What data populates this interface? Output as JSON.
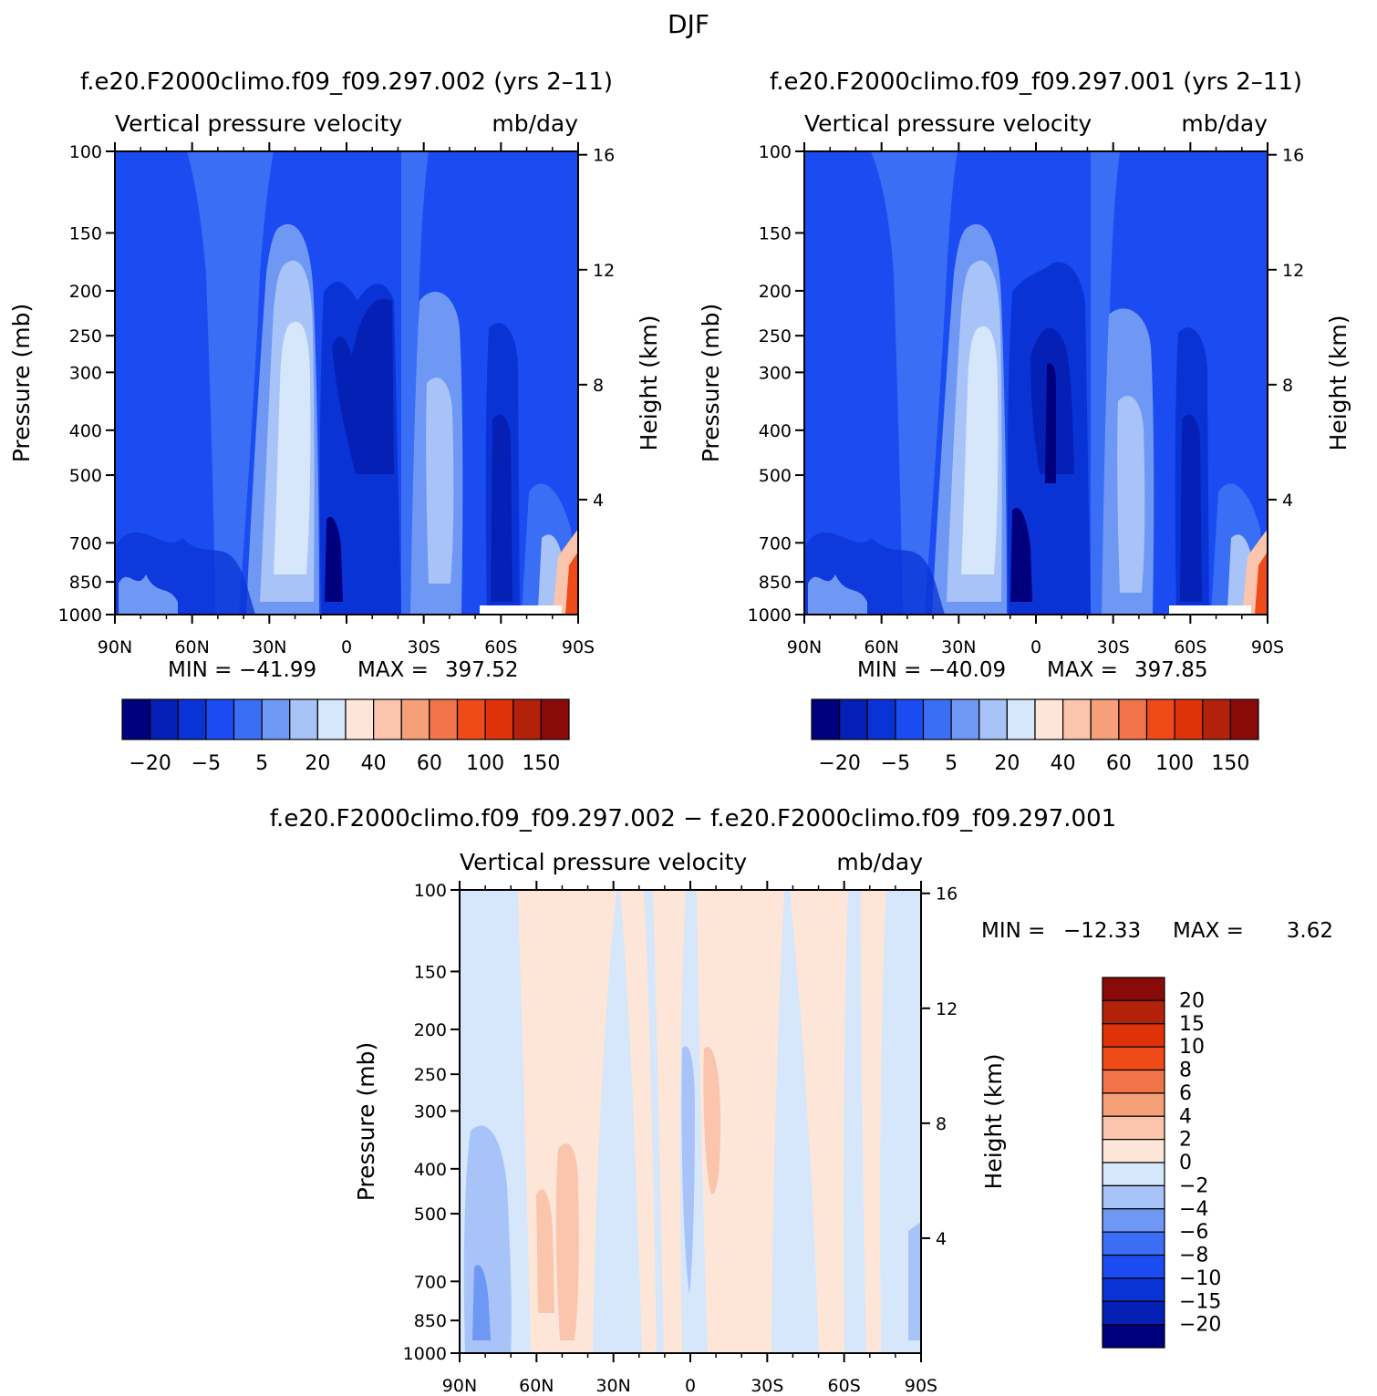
{
  "page": {
    "title": "DJF"
  },
  "colors": {
    "control_palette": [
      "#00007f",
      "#0520b4",
      "#0a33d6",
      "#1a4cf2",
      "#3a6ef5",
      "#6f98f4",
      "#a7c3f8",
      "#d6e6fb",
      "#fde6d8",
      "#fac4ad",
      "#f6a07a",
      "#f2754a",
      "#ee4b19",
      "#df3208",
      "#b3210a",
      "#8a0a0a"
    ],
    "diff_palette": [
      "#00007f",
      "#0520b4",
      "#0a33d6",
      "#1a4cf2",
      "#3a6ef5",
      "#6f98f4",
      "#a7c3f8",
      "#d6e6fb",
      "#fde6d8",
      "#fac4ad",
      "#f6a07a",
      "#f2754a",
      "#ee4b19",
      "#df3208",
      "#b3210a",
      "#8a0a0a"
    ]
  },
  "chart_data": [
    {
      "type": "heatmap",
      "panel": "top-left",
      "case_title": "f.e20.F2000climo.f09_f09.297.002 (yrs 2–11)",
      "title": "Vertical pressure velocity",
      "units": "mb/day",
      "xlabel": "",
      "ylabel": "Pressure (mb)",
      "ylabel_right": "Height (km)",
      "x_ticks": [
        "90N",
        "60N",
        "30N",
        "0",
        "30S",
        "60S",
        "90S"
      ],
      "y_ticks": [
        100,
        150,
        200,
        250,
        300,
        400,
        500,
        700,
        850,
        1000
      ],
      "y_scale": "log",
      "ylim": [
        1000,
        100
      ],
      "right_ticks": [
        4,
        8,
        12,
        16
      ],
      "stats": {
        "min_label": "MIN =",
        "min": "−41.99",
        "max_label": "MAX =",
        "max": "397.52"
      },
      "colorbar_labels": [
        "−20",
        "−5",
        "5",
        "20",
        "40",
        "60",
        "100",
        "150"
      ],
      "colorbar_orientation": "horizontal"
    },
    {
      "type": "heatmap",
      "panel": "top-right",
      "case_title": "f.e20.F2000climo.f09_f09.297.001 (yrs 2–11)",
      "title": "Vertical pressure velocity",
      "units": "mb/day",
      "xlabel": "",
      "ylabel": "Pressure (mb)",
      "ylabel_right": "Height (km)",
      "x_ticks": [
        "90N",
        "60N",
        "30N",
        "0",
        "30S",
        "60S",
        "90S"
      ],
      "y_ticks": [
        100,
        150,
        200,
        250,
        300,
        400,
        500,
        700,
        850,
        1000
      ],
      "y_scale": "log",
      "ylim": [
        1000,
        100
      ],
      "right_ticks": [
        4,
        8,
        12,
        16
      ],
      "stats": {
        "min_label": "MIN =",
        "min": "−40.09",
        "max_label": "MAX =",
        "max": "397.85"
      },
      "colorbar_labels": [
        "−20",
        "−5",
        "5",
        "20",
        "40",
        "60",
        "100",
        "150"
      ],
      "colorbar_orientation": "horizontal"
    },
    {
      "type": "heatmap",
      "panel": "bottom-difference",
      "case_title": "f.e20.F2000climo.f09_f09.297.002 − f.e20.F2000climo.f09_f09.297.001",
      "title": "Vertical pressure velocity",
      "units": "mb/day",
      "xlabel": "",
      "ylabel": "Pressure (mb)",
      "ylabel_right": "Height (km)",
      "x_ticks": [
        "90N",
        "60N",
        "30N",
        "0",
        "30S",
        "60S",
        "90S"
      ],
      "y_ticks": [
        100,
        150,
        200,
        250,
        300,
        400,
        500,
        700,
        850,
        1000
      ],
      "y_scale": "log",
      "ylim": [
        1000,
        100
      ],
      "right_ticks": [
        4,
        8,
        12,
        16
      ],
      "stats": {
        "min_label": "MIN =",
        "min": "−12.33",
        "max_label": "MAX =",
        "max": "3.62"
      },
      "colorbar_labels": [
        "20",
        "15",
        "10",
        "8",
        "6",
        "4",
        "2",
        "0",
        "−2",
        "−4",
        "−6",
        "−8",
        "−10",
        "−15",
        "−20"
      ],
      "colorbar_orientation": "vertical"
    }
  ]
}
